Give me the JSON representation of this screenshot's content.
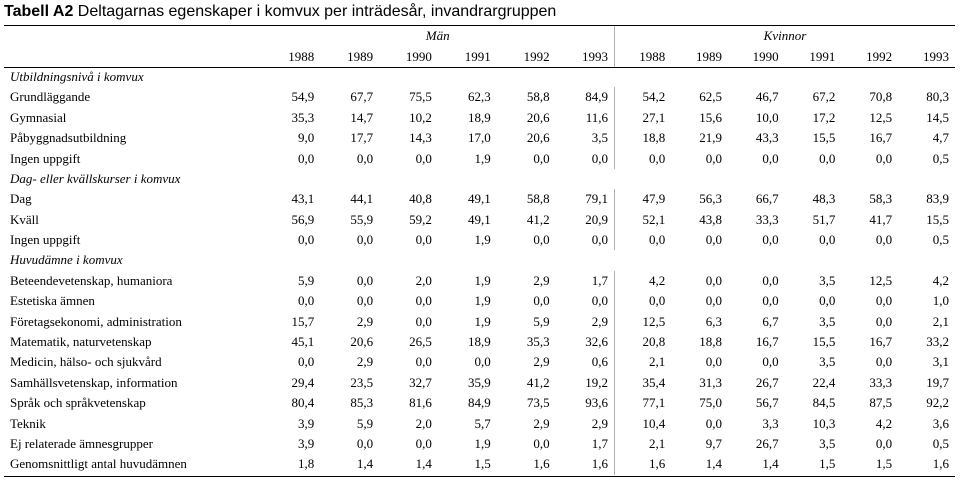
{
  "title": {
    "bold": "Tabell A2",
    "rest": " Deltagarnas egenskaper i komvux per inträdesår, invandrargruppen"
  },
  "groups": {
    "men": "Män",
    "women": "Kvinnor"
  },
  "years": [
    "1988",
    "1989",
    "1990",
    "1991",
    "1992",
    "1993"
  ],
  "sections": [
    {
      "heading": "Utbildningsnivå i komvux",
      "rows": [
        {
          "label": "Grundläggande",
          "men": [
            "54,9",
            "67,7",
            "75,5",
            "62,3",
            "58,8",
            "84,9"
          ],
          "women": [
            "54,2",
            "62,5",
            "46,7",
            "67,2",
            "70,8",
            "80,3"
          ]
        },
        {
          "label": "Gymnasial",
          "men": [
            "35,3",
            "14,7",
            "10,2",
            "18,9",
            "20,6",
            "11,6"
          ],
          "women": [
            "27,1",
            "15,6",
            "10,0",
            "17,2",
            "12,5",
            "14,5"
          ]
        },
        {
          "label": "Påbyggnadsutbildning",
          "men": [
            "9,0",
            "17,7",
            "14,3",
            "17,0",
            "20,6",
            "3,5"
          ],
          "women": [
            "18,8",
            "21,9",
            "43,3",
            "15,5",
            "16,7",
            "4,7"
          ]
        },
        {
          "label": "Ingen uppgift",
          "men": [
            "0,0",
            "0,0",
            "0,0",
            "1,9",
            "0,0",
            "0,0"
          ],
          "women": [
            "0,0",
            "0,0",
            "0,0",
            "0,0",
            "0,0",
            "0,5"
          ]
        }
      ]
    },
    {
      "heading": "Dag- eller kvällskurser i komvux",
      "rows": [
        {
          "label": "Dag",
          "men": [
            "43,1",
            "44,1",
            "40,8",
            "49,1",
            "58,8",
            "79,1"
          ],
          "women": [
            "47,9",
            "56,3",
            "66,7",
            "48,3",
            "58,3",
            "83,9"
          ]
        },
        {
          "label": "Kväll",
          "men": [
            "56,9",
            "55,9",
            "59,2",
            "49,1",
            "41,2",
            "20,9"
          ],
          "women": [
            "52,1",
            "43,8",
            "33,3",
            "51,7",
            "41,7",
            "15,5"
          ]
        },
        {
          "label": "Ingen uppgift",
          "men": [
            "0,0",
            "0,0",
            "0,0",
            "1,9",
            "0,0",
            "0,0"
          ],
          "women": [
            "0,0",
            "0,0",
            "0,0",
            "0,0",
            "0,0",
            "0,5"
          ]
        }
      ]
    },
    {
      "heading": "Huvudämne i komvux",
      "rows": [
        {
          "label": "Beteendevetenskap, humaniora",
          "men": [
            "5,9",
            "0,0",
            "2,0",
            "1,9",
            "2,9",
            "1,7"
          ],
          "women": [
            "4,2",
            "0,0",
            "0,0",
            "3,5",
            "12,5",
            "4,2"
          ]
        },
        {
          "label": "Estetiska ämnen",
          "men": [
            "0,0",
            "0,0",
            "0,0",
            "1,9",
            "0,0",
            "0,0"
          ],
          "women": [
            "0,0",
            "0,0",
            "0,0",
            "0,0",
            "0,0",
            "1,0"
          ]
        },
        {
          "label": "Företagsekonomi, administration",
          "men": [
            "15,7",
            "2,9",
            "0,0",
            "1,9",
            "5,9",
            "2,9"
          ],
          "women": [
            "12,5",
            "6,3",
            "6,7",
            "3,5",
            "0,0",
            "2,1"
          ]
        },
        {
          "label": "Matematik, naturvetenskap",
          "men": [
            "45,1",
            "20,6",
            "26,5",
            "18,9",
            "35,3",
            "32,6"
          ],
          "women": [
            "20,8",
            "18,8",
            "16,7",
            "15,5",
            "16,7",
            "33,2"
          ]
        },
        {
          "label": "Medicin, hälso- och sjukvård",
          "men": [
            "0,0",
            "2,9",
            "0,0",
            "0,0",
            "2,9",
            "0,6"
          ],
          "women": [
            "2,1",
            "0,0",
            "0,0",
            "3,5",
            "0,0",
            "3,1"
          ]
        },
        {
          "label": "Samhällsvetenskap, information",
          "men": [
            "29,4",
            "23,5",
            "32,7",
            "35,9",
            "41,2",
            "19,2"
          ],
          "women": [
            "35,4",
            "31,3",
            "26,7",
            "22,4",
            "33,3",
            "19,7"
          ]
        },
        {
          "label": "Språk och språkvetenskap",
          "men": [
            "80,4",
            "85,3",
            "81,6",
            "84,9",
            "73,5",
            "93,6"
          ],
          "women": [
            "77,1",
            "75,0",
            "56,7",
            "84,5",
            "87,5",
            "92,2"
          ]
        },
        {
          "label": "Teknik",
          "men": [
            "3,9",
            "5,9",
            "2,0",
            "5,7",
            "2,9",
            "2,9"
          ],
          "women": [
            "10,4",
            "0,0",
            "3,3",
            "10,3",
            "4,2",
            "3,6"
          ]
        },
        {
          "label": "Ej relaterade ämnesgrupper",
          "men": [
            "3,9",
            "0,0",
            "0,0",
            "1,9",
            "0,0",
            "1,7"
          ],
          "women": [
            "2,1",
            "9,7",
            "26,7",
            "3,5",
            "0,0",
            "0,5"
          ]
        },
        {
          "label": "Genomsnittligt antal huvudämnen",
          "men": [
            "1,8",
            "1,4",
            "1,4",
            "1,5",
            "1,6",
            "1,6"
          ],
          "women": [
            "1,6",
            "1,4",
            "1,4",
            "1,5",
            "1,5",
            "1,6"
          ]
        }
      ]
    }
  ]
}
